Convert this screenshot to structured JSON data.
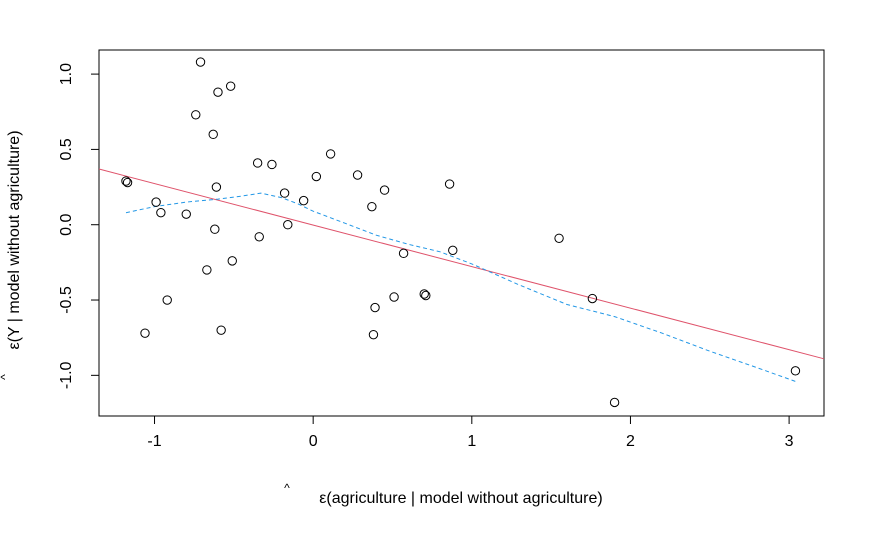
{
  "chart_data": {
    "type": "scatter",
    "title": "",
    "xlabel": "ε(agriculture | model without agriculture)",
    "ylabel": "ε(Y | model without agriculture)",
    "label_hat": "^",
    "xlim": [
      -1.35,
      3.22
    ],
    "ylim": [
      -1.27,
      1.16
    ],
    "x_ticks": [
      -1,
      0,
      1,
      2,
      3
    ],
    "x_tick_labels": [
      "-1",
      "0",
      "1",
      "2",
      "3"
    ],
    "y_ticks": [
      -1.0,
      -0.5,
      0.0,
      0.5,
      1.0
    ],
    "y_tick_labels": [
      "-1.0",
      "-0.5",
      "0.0",
      "0.5",
      "1.0"
    ],
    "grid": false,
    "points": [
      {
        "x": -1.18,
        "y": 0.29
      },
      {
        "x": -1.17,
        "y": 0.28
      },
      {
        "x": -1.06,
        "y": -0.72
      },
      {
        "x": -0.99,
        "y": 0.15
      },
      {
        "x": -0.96,
        "y": 0.08
      },
      {
        "x": -0.92,
        "y": -0.5
      },
      {
        "x": -0.8,
        "y": 0.07
      },
      {
        "x": -0.74,
        "y": 0.73
      },
      {
        "x": -0.71,
        "y": 1.08
      },
      {
        "x": -0.67,
        "y": -0.3
      },
      {
        "x": -0.63,
        "y": 0.6
      },
      {
        "x": -0.62,
        "y": -0.03
      },
      {
        "x": -0.61,
        "y": 0.25
      },
      {
        "x": -0.6,
        "y": 0.88
      },
      {
        "x": -0.58,
        "y": -0.7
      },
      {
        "x": -0.52,
        "y": 0.92
      },
      {
        "x": -0.51,
        "y": -0.24
      },
      {
        "x": -0.35,
        "y": 0.41
      },
      {
        "x": -0.34,
        "y": -0.08
      },
      {
        "x": -0.26,
        "y": 0.4
      },
      {
        "x": -0.18,
        "y": 0.21
      },
      {
        "x": -0.16,
        "y": 0.0
      },
      {
        "x": -0.06,
        "y": 0.16
      },
      {
        "x": 0.02,
        "y": 0.32
      },
      {
        "x": 0.11,
        "y": 0.47
      },
      {
        "x": 0.28,
        "y": 0.33
      },
      {
        "x": 0.37,
        "y": 0.12
      },
      {
        "x": 0.38,
        "y": -0.73
      },
      {
        "x": 0.39,
        "y": -0.55
      },
      {
        "x": 0.45,
        "y": 0.23
      },
      {
        "x": 0.51,
        "y": -0.48
      },
      {
        "x": 0.57,
        "y": -0.19
      },
      {
        "x": 0.7,
        "y": -0.46
      },
      {
        "x": 0.71,
        "y": -0.47
      },
      {
        "x": 0.86,
        "y": 0.27
      },
      {
        "x": 0.88,
        "y": -0.17
      },
      {
        "x": 1.55,
        "y": -0.09
      },
      {
        "x": 1.76,
        "y": -0.49
      },
      {
        "x": 1.9,
        "y": -1.18
      },
      {
        "x": 3.04,
        "y": -0.97
      }
    ],
    "series": [
      {
        "kind": "line",
        "color": "#df536b",
        "dash": "solid",
        "x": [
          -1.35,
          3.22
        ],
        "y": [
          0.37,
          -0.89
        ]
      },
      {
        "kind": "line",
        "color": "#2297e6",
        "dash": "dashed",
        "x": [
          -1.18,
          -1.0,
          -0.8,
          -0.6,
          -0.45,
          -0.33,
          -0.2,
          -0.1,
          0.0,
          0.2,
          0.4,
          0.6,
          0.8,
          1.0,
          1.3,
          1.6,
          1.9,
          2.2,
          2.5,
          2.8,
          3.04
        ],
        "y": [
          0.08,
          0.12,
          0.15,
          0.17,
          0.19,
          0.21,
          0.18,
          0.14,
          0.09,
          0.01,
          -0.07,
          -0.13,
          -0.18,
          -0.26,
          -0.4,
          -0.53,
          -0.61,
          -0.72,
          -0.84,
          -0.95,
          -1.04
        ]
      }
    ]
  }
}
